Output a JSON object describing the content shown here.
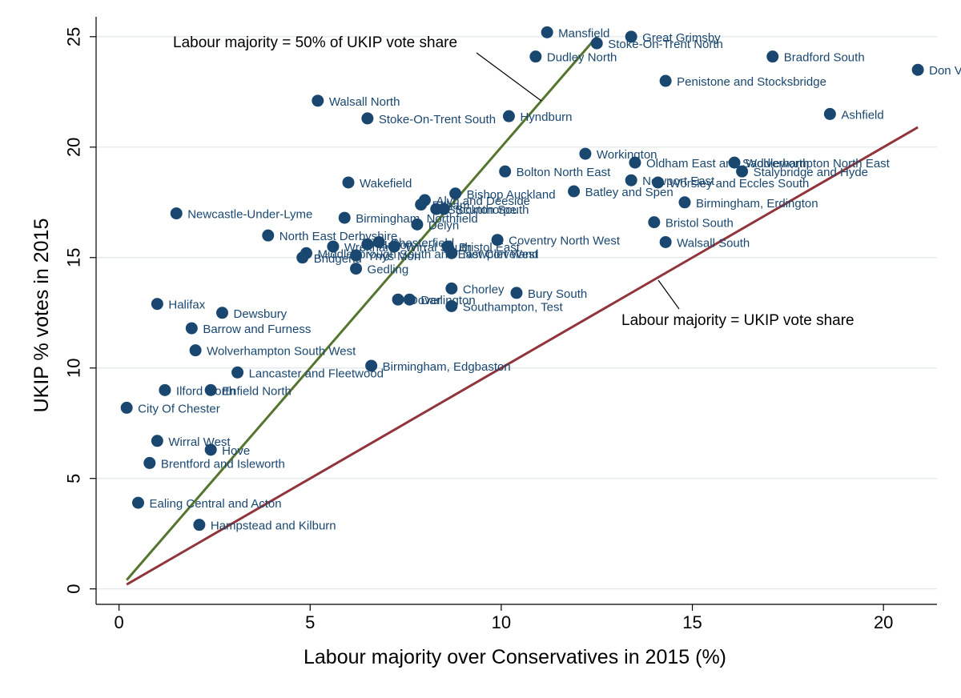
{
  "chart_data": {
    "type": "scatter",
    "xlabel": "Labour majority over Conservatives in 2015 (%)",
    "ylabel": "UKIP % votes in 2015",
    "xlim": [
      -0.6,
      21.4
    ],
    "ylim": [
      -0.7,
      25.9
    ],
    "x_ticks": [
      0,
      5,
      10,
      15,
      20
    ],
    "y_ticks": [
      0,
      5,
      10,
      15,
      20,
      25
    ],
    "grid": "horizontal",
    "colors": {
      "points": "#1a476f",
      "line_half": "#55752f",
      "line_equal": "#90353b"
    },
    "points": [
      {
        "name": "Mansfield",
        "x": 11.2,
        "y": 25.2
      },
      {
        "name": "Great Grimsby",
        "x": 13.4,
        "y": 25.0
      },
      {
        "name": "Stoke-On-Trent North",
        "x": 12.5,
        "y": 24.7
      },
      {
        "name": "Dudley North",
        "x": 10.9,
        "y": 24.1
      },
      {
        "name": "Bradford South",
        "x": 17.1,
        "y": 24.1
      },
      {
        "name": "Don Valley",
        "x": 20.9,
        "y": 23.5
      },
      {
        "name": "Penistone and Stocksbridge",
        "x": 14.3,
        "y": 23.0
      },
      {
        "name": "Walsall North",
        "x": 5.2,
        "y": 22.1
      },
      {
        "name": "Ashfield",
        "x": 18.6,
        "y": 21.5
      },
      {
        "name": "Stoke-On-Trent South",
        "x": 6.5,
        "y": 21.3
      },
      {
        "name": "Hyndburn",
        "x": 10.2,
        "y": 21.4
      },
      {
        "name": "Workington",
        "x": 12.2,
        "y": 19.7
      },
      {
        "name": "Oldham East and Saddleworth",
        "x": 13.5,
        "y": 19.3
      },
      {
        "name": "Wolverhampton North East",
        "x": 16.1,
        "y": 19.3
      },
      {
        "name": "Stalybridge and Hyde",
        "x": 16.3,
        "y": 18.9
      },
      {
        "name": "Bolton North East",
        "x": 10.1,
        "y": 18.9
      },
      {
        "name": "Newport East",
        "x": 13.4,
        "y": 18.5
      },
      {
        "name": "Worsley and Eccles South",
        "x": 14.1,
        "y": 18.4
      },
      {
        "name": "Wakefield",
        "x": 6.0,
        "y": 18.4
      },
      {
        "name": "Batley and Spen",
        "x": 11.9,
        "y": 18.0
      },
      {
        "name": "Bishop Auckland",
        "x": 8.8,
        "y": 17.9
      },
      {
        "name": "Alyn and Deeside",
        "x": 8.0,
        "y": 17.6
      },
      {
        "name": "Birmingham, Erdington",
        "x": 14.8,
        "y": 17.5
      },
      {
        "name": "Eltham",
        "x": 7.9,
        "y": 17.4
      },
      {
        "name": "Scunthorpe",
        "x": 8.5,
        "y": 17.2
      },
      {
        "name": "Stockton South",
        "x": 8.3,
        "y": 17.2
      },
      {
        "name": "Newcastle-Under-Lyme",
        "x": 1.5,
        "y": 17.0
      },
      {
        "name": "Birmingham, Northfield",
        "x": 5.9,
        "y": 16.8
      },
      {
        "name": "Bristol South",
        "x": 14.0,
        "y": 16.6
      },
      {
        "name": "Delyn",
        "x": 7.8,
        "y": 16.5
      },
      {
        "name": "North East Derbyshire",
        "x": 3.9,
        "y": 16.0
      },
      {
        "name": "Coventry North West",
        "x": 9.9,
        "y": 15.8
      },
      {
        "name": "Walsall South",
        "x": 14.3,
        "y": 15.7
      },
      {
        "name": "Chesterfield",
        "x": 6.8,
        "y": 15.7
      },
      {
        "name": "Wrexham",
        "x": 5.6,
        "y": 15.5
      },
      {
        "name": "Halton",
        "x": 6.5,
        "y": 15.6
      },
      {
        "name": "Wirral South",
        "x": 7.2,
        "y": 15.5
      },
      {
        "name": "Bristol East",
        "x": 8.6,
        "y": 15.5
      },
      {
        "name": "Middlesbrough South and East Cleveland",
        "x": 4.9,
        "y": 15.2
      },
      {
        "name": "Newport West",
        "x": 8.7,
        "y": 15.2
      },
      {
        "name": "Bridgend",
        "x": 4.8,
        "y": 15.0
      },
      {
        "name": "Ynys Mon",
        "x": 6.2,
        "y": 15.1
      },
      {
        "name": "Gedling",
        "x": 6.2,
        "y": 14.5
      },
      {
        "name": "Chorley",
        "x": 8.7,
        "y": 13.6
      },
      {
        "name": "Bury South",
        "x": 10.4,
        "y": 13.4
      },
      {
        "name": "Darlington",
        "x": 7.6,
        "y": 13.1
      },
      {
        "name": "Dover",
        "x": 7.3,
        "y": 13.1
      },
      {
        "name": "Southampton, Test",
        "x": 8.7,
        "y": 12.8
      },
      {
        "name": "Halifax",
        "x": 1.0,
        "y": 12.9
      },
      {
        "name": "Dewsbury",
        "x": 2.7,
        "y": 12.5
      },
      {
        "name": "Barrow and Furness",
        "x": 1.9,
        "y": 11.8
      },
      {
        "name": "Wolverhampton South West",
        "x": 2.0,
        "y": 10.8
      },
      {
        "name": "Birmingham, Edgbaston",
        "x": 6.6,
        "y": 10.1
      },
      {
        "name": "Lancaster and Fleetwood",
        "x": 3.1,
        "y": 9.8
      },
      {
        "name": "Ilford North",
        "x": 1.2,
        "y": 9.0
      },
      {
        "name": "Enfield North",
        "x": 2.4,
        "y": 9.0
      },
      {
        "name": "City Of Chester",
        "x": 0.2,
        "y": 8.2
      },
      {
        "name": "Wirral West",
        "x": 1.0,
        "y": 6.7
      },
      {
        "name": "Hove",
        "x": 2.4,
        "y": 6.3
      },
      {
        "name": "Brentford and Isleworth",
        "x": 0.8,
        "y": 5.7
      },
      {
        "name": "Ealing Central and Acton",
        "x": 0.5,
        "y": 3.9
      },
      {
        "name": "Hampstead and Kilburn",
        "x": 2.1,
        "y": 2.9
      }
    ],
    "lines": [
      {
        "label": "Labour majority = 50% of UKIP vote share",
        "from": [
          0.2,
          0.4
        ],
        "to": [
          12.5,
          25.0
        ]
      },
      {
        "label": "Labour majority = UKIP vote share",
        "from": [
          0.2,
          0.2
        ],
        "to": [
          20.9,
          20.9
        ]
      }
    ]
  }
}
